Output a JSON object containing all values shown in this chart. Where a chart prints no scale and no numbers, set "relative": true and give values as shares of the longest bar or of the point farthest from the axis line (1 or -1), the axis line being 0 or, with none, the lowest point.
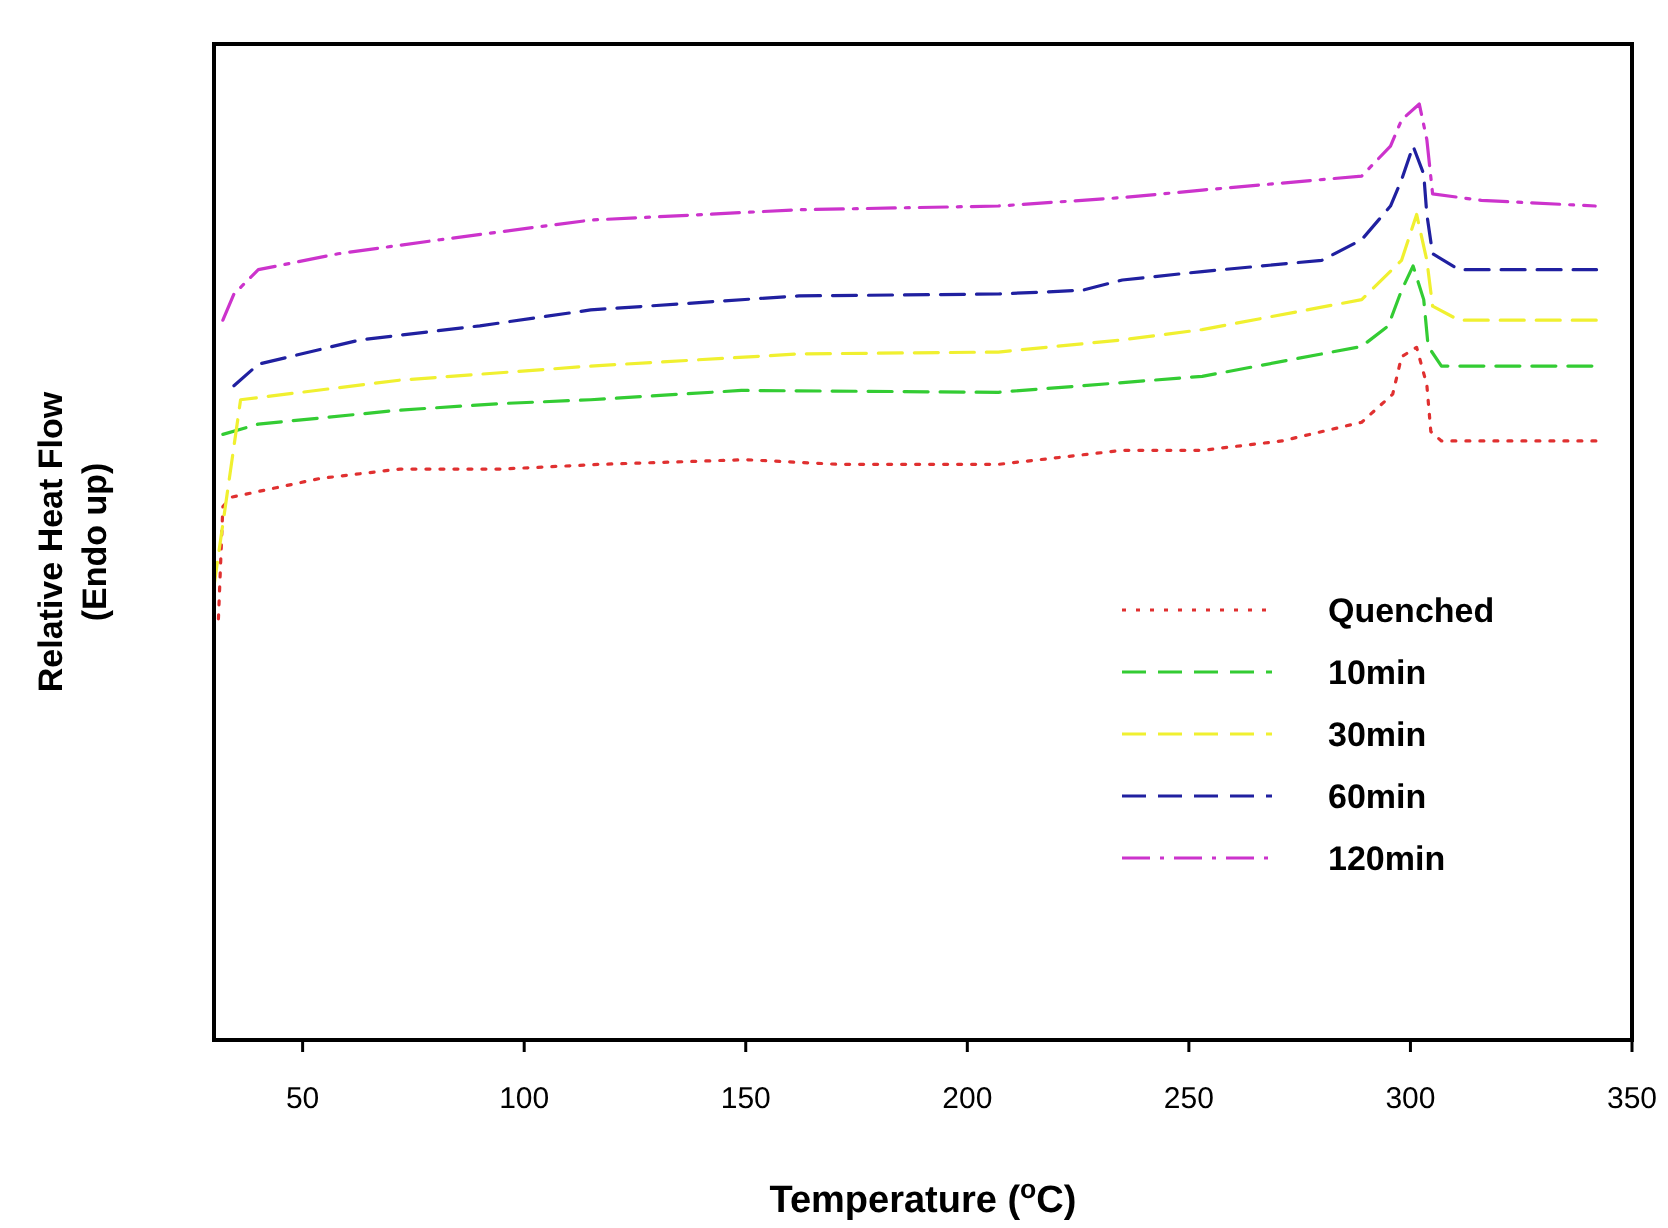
{
  "chart_data": {
    "type": "line",
    "xlabel": "Temperature ($^{o}$C)",
    "ylabel": "Relative Heat Flow\n(Endo up)",
    "relative": true,
    "xlim": [
      30,
      350
    ],
    "xticks": [
      50,
      100,
      150,
      200,
      250,
      300,
      350
    ],
    "legend": "bottom right",
    "grid": false,
    "series": [
      {
        "name": "Quenched",
        "color": "#e03030",
        "line_style": "dotted",
        "x": [
          31,
          32,
          34,
          54,
          72,
          95,
          117,
          150,
          171,
          207,
          235,
          253,
          271,
          289,
          296,
          298,
          301.4,
          303.7,
          304.6,
          307,
          342
        ],
        "values": [
          0.45,
          0.57,
          0.58,
          0.6,
          0.61,
          0.61,
          0.615,
          0.62,
          0.615,
          0.615,
          0.63,
          0.63,
          0.64,
          0.66,
          0.69,
          0.73,
          0.74,
          0.7,
          0.65,
          0.64,
          0.64
        ]
      },
      {
        "name": "10min",
        "color": "#33cc33",
        "line_style": "dashed",
        "x": [
          32,
          40,
          72,
          95,
          115,
          149,
          207,
          226,
          253,
          289,
          295,
          298,
          300.6,
          303,
          304,
          307,
          342
        ],
        "values": [
          0.647,
          0.658,
          0.673,
          0.68,
          0.684,
          0.694,
          0.692,
          0.699,
          0.709,
          0.741,
          0.763,
          0.801,
          0.827,
          0.791,
          0.741,
          0.72,
          0.72
        ]
      },
      {
        "name": "30min",
        "color": "#f0f030",
        "line_style": "dashed",
        "x": [
          30,
          36,
          72,
          115,
          162,
          207,
          235,
          253,
          289,
          298,
          301.4,
          303.7,
          305,
          311,
          342
        ],
        "values": [
          0.485,
          0.684,
          0.705,
          0.72,
          0.733,
          0.735,
          0.748,
          0.759,
          0.791,
          0.833,
          0.882,
          0.833,
          0.784,
          0.769,
          0.769
        ]
      },
      {
        "name": "60min",
        "color": "#2020a0",
        "line_style": "dashed",
        "x": [
          34.5,
          40,
          63,
          90,
          115,
          162,
          207,
          226,
          235,
          253,
          280,
          289,
          295.5,
          298,
          300.6,
          303,
          303.7,
          305,
          311,
          342
        ],
        "values": [
          0.699,
          0.722,
          0.748,
          0.763,
          0.78,
          0.795,
          0.797,
          0.801,
          0.812,
          0.821,
          0.833,
          0.855,
          0.891,
          0.919,
          0.955,
          0.925,
          0.882,
          0.84,
          0.823,
          0.823
        ]
      },
      {
        "name": "120min",
        "color": "#cc33cc",
        "line_style": "dashdot",
        "x": [
          32,
          34.5,
          40,
          58,
          81,
          115,
          162,
          207,
          235,
          253,
          289,
          295.5,
          298,
          302,
          303.7,
          305,
          316,
          341.7
        ],
        "values": [
          0.769,
          0.797,
          0.823,
          0.84,
          0.855,
          0.876,
          0.887,
          0.891,
          0.9,
          0.908,
          0.923,
          0.955,
          0.983,
          1.0,
          0.962,
          0.904,
          0.897,
          0.891
        ]
      }
    ]
  }
}
